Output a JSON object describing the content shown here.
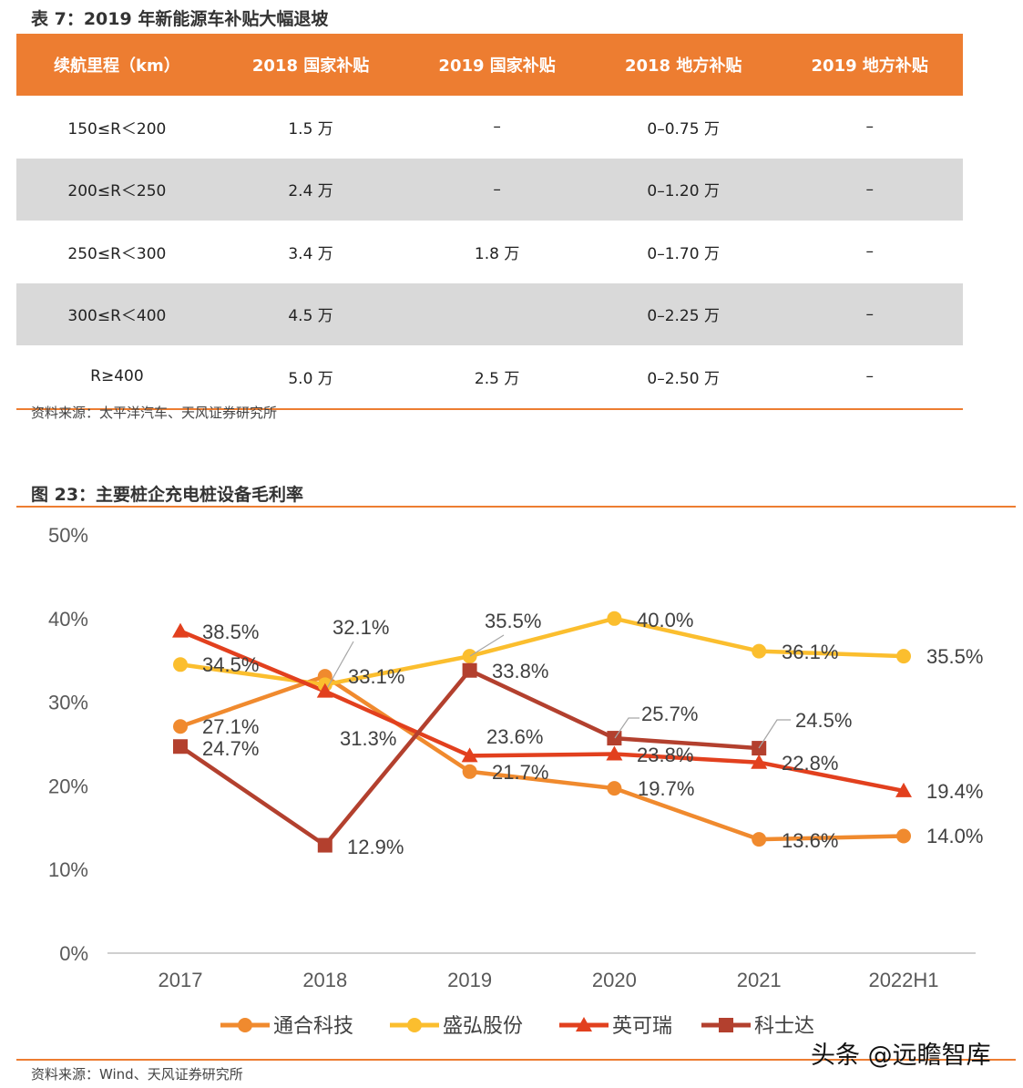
{
  "table": {
    "title": "表 7：2019 年新能源车补贴大幅退坡",
    "headers": [
      "续航里程（km）",
      "2018 国家补贴",
      "2019 国家补贴",
      "2018 地方补贴",
      "2019 地方补贴"
    ],
    "rows": [
      [
        "150≤R＜200",
        "1.5 万",
        "–",
        "0–0.75 万",
        "–"
      ],
      [
        "200≤R＜250",
        "2.4 万",
        "–",
        "0–1.20 万",
        "–"
      ],
      [
        "250≤R＜300",
        "3.4 万",
        "1.8 万",
        "0–1.70 万",
        "–"
      ],
      [
        "300≤R＜400",
        "4.5 万",
        "",
        "0–2.25 万",
        "–"
      ],
      [
        "R≥400",
        "5.0 万",
        "2.5 万",
        "0–2.50 万",
        "–"
      ]
    ],
    "source": "资料来源：太平洋汽车、天风证券研究所",
    "header_color": "#ED7D31",
    "stripe_color": "#D9D9D9"
  },
  "figure": {
    "title": "图 23：主要桩企充电桩设备毛利率",
    "source": "资料来源：Wind、天风证券研究所",
    "watermark": "头条 @远瞻智库"
  },
  "chart_data": {
    "type": "line",
    "categories": [
      "2017",
      "2018",
      "2019",
      "2020",
      "2021",
      "2022H1"
    ],
    "ylim": [
      0,
      50
    ],
    "yticks": [
      "0%",
      "10%",
      "20%",
      "30%",
      "40%",
      "50%"
    ],
    "grid": false,
    "legend": "bottom",
    "series": [
      {
        "name": "通合科技",
        "marker": "circle",
        "color": "#F08A2E",
        "values": [
          27.1,
          33.1,
          21.7,
          19.7,
          13.6,
          14.0
        ],
        "labels": [
          "27.1%",
          "33.1%",
          "21.7%",
          "19.7%",
          "13.6%",
          "14.0%"
        ]
      },
      {
        "name": "盛弘股份",
        "marker": "circle",
        "color": "#FBBE2E",
        "values": [
          34.5,
          32.1,
          35.5,
          40.0,
          36.1,
          35.5
        ],
        "labels": [
          "34.5%",
          "32.1%",
          "35.5%",
          "40.0%",
          "36.1%",
          "35.5%"
        ]
      },
      {
        "name": "英可瑞",
        "marker": "triangle",
        "color": "#E2401E",
        "values": [
          38.5,
          31.3,
          23.6,
          23.8,
          22.8,
          19.4
        ],
        "labels": [
          "38.5%",
          "31.3%",
          "23.6%",
          "23.8%",
          "22.8%",
          "19.4%"
        ]
      },
      {
        "name": "科士达",
        "marker": "square",
        "color": "#B3402E",
        "values": [
          24.7,
          12.9,
          33.8,
          25.7,
          24.5,
          null
        ],
        "labels": [
          "24.7%",
          "12.9%",
          "33.8%",
          "25.7%",
          "24.5%",
          ""
        ]
      }
    ]
  }
}
